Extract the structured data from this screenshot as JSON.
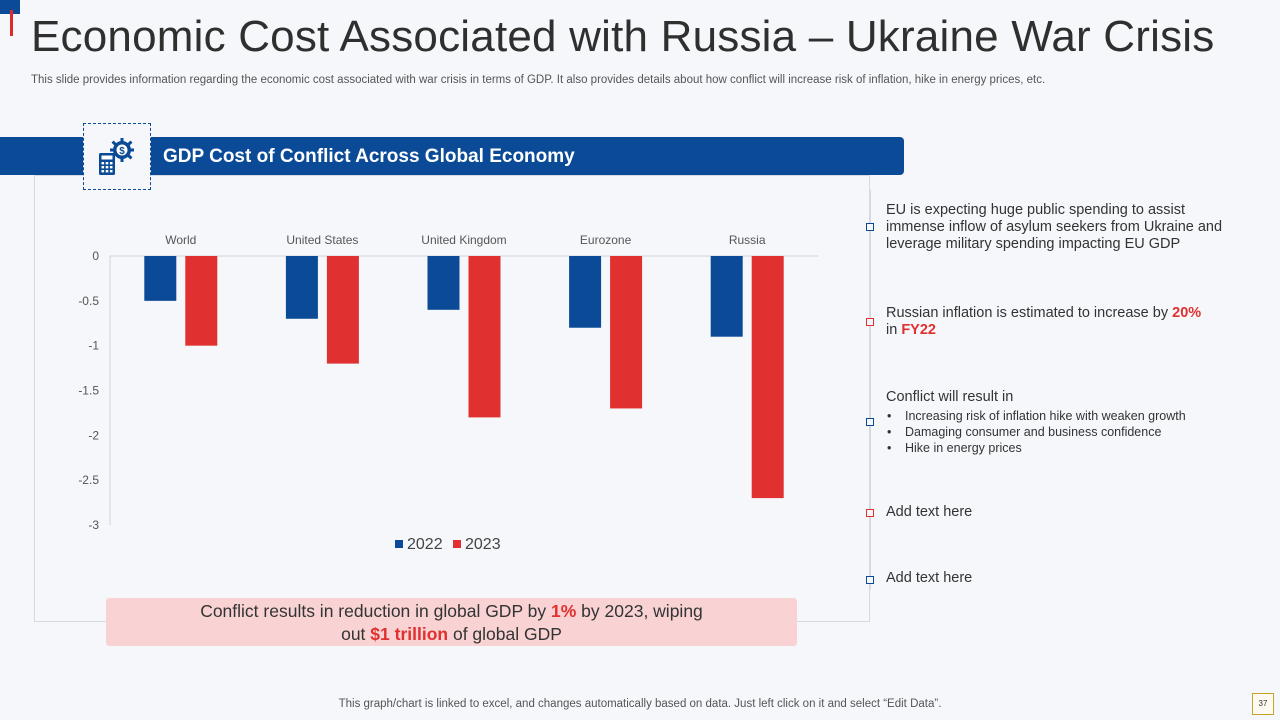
{
  "slide": {
    "title": "Economic Cost Associated with Russia – Ukraine War Crisis",
    "subtitle": "This slide provides information regarding the economic cost associated with war crisis in terms of GDP. It also provides details about how conflict will increase risk of inflation, hike in energy prices, etc.",
    "banner_title": "GDP Cost of Conflict Across Global Economy",
    "banner_icon": "calculator-gear-dollar-icon",
    "footer": "This graph/chart is linked to excel, and changes automatically based on data. Just left click on it and select “Edit Data”.",
    "page_number": "37"
  },
  "colors": {
    "primary": "#0a4a96",
    "accent": "#e0302f",
    "callout_bg": "#f9d3d3"
  },
  "callout": {
    "t1": "Conflict results in reduction in global GDP by ",
    "h1": "1%",
    "t2": " by 2023, wiping",
    "t3": "out ",
    "h2": "$1 trillion",
    "t4": " of global GDP"
  },
  "notes": {
    "n1": "EU is expecting huge public spending to assist immense inflow of asylum seekers from Ukraine and leverage military spending impacting EU GDP",
    "n2_a": "Russian inflation is estimated to increase by ",
    "n2_b": "20%",
    "n2_c": "in ",
    "n2_d": "FY22",
    "n3_title": "Conflict will result in",
    "n3_bullets": [
      "Increasing risk of inflation hike with weaken growth",
      "Damaging consumer and business confidence",
      "Hike in energy prices"
    ],
    "n4": "Add text here",
    "n5": "Add text here"
  },
  "chart_data": {
    "type": "bar",
    "title": "GDP Cost of Conflict Across Global Economy",
    "categories": [
      "World",
      "United States",
      "United Kingdom",
      "Eurozone",
      "Russia"
    ],
    "series": [
      {
        "name": "2022",
        "color": "#0a4a96",
        "values": [
          -0.5,
          -0.7,
          -0.6,
          -0.8,
          -0.9
        ]
      },
      {
        "name": "2023",
        "color": "#e0302f",
        "values": [
          -1.0,
          -1.2,
          -1.8,
          -1.7,
          -2.7
        ]
      }
    ],
    "yticks": [
      "0",
      "-0.5",
      "-1",
      "-1.5",
      "-2",
      "-2.5",
      "-3"
    ],
    "ylim": [
      -3,
      0
    ],
    "xlabel": "",
    "ylabel": "",
    "legend_position": "bottom",
    "grid": false
  }
}
